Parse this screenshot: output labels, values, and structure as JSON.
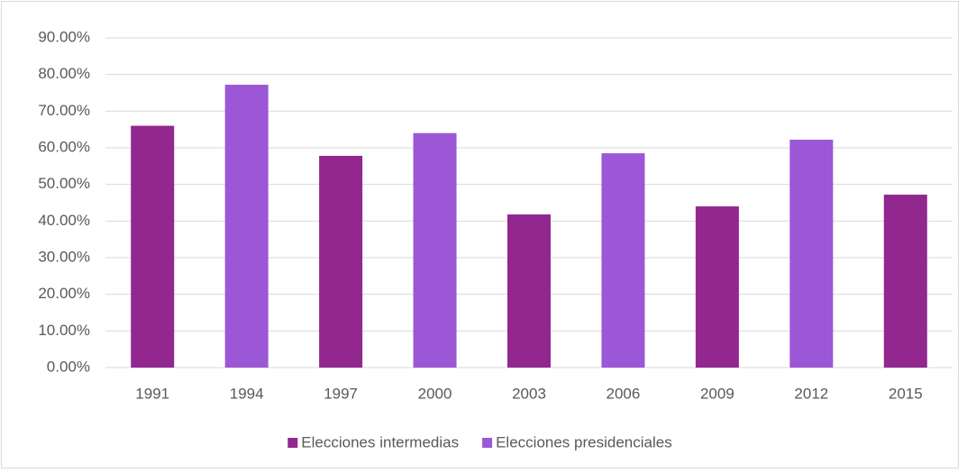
{
  "chart_data": {
    "type": "bar",
    "categories": [
      "1991",
      "1994",
      "1997",
      "2000",
      "2003",
      "2006",
      "2009",
      "2012",
      "2015"
    ],
    "series": [
      {
        "name": "Elecciones intermedias",
        "color": "#92278f",
        "values": [
          66.0,
          null,
          57.8,
          null,
          41.8,
          null,
          44.0,
          null,
          47.2
        ]
      },
      {
        "name": "Elecciones presidenciales",
        "color": "#9b57d6",
        "values": [
          null,
          77.2,
          null,
          64.0,
          null,
          58.5,
          null,
          62.2,
          null
        ]
      }
    ],
    "ylim": [
      0,
      90
    ],
    "yticks": [
      {
        "value": 0,
        "label": "0.00%"
      },
      {
        "value": 10,
        "label": "10.00%"
      },
      {
        "value": 20,
        "label": "20.00%"
      },
      {
        "value": 30,
        "label": "30.00%"
      },
      {
        "value": 40,
        "label": "40.00%"
      },
      {
        "value": 50,
        "label": "50.00%"
      },
      {
        "value": 60,
        "label": "60.00%"
      },
      {
        "value": 70,
        "label": "70.00%"
      },
      {
        "value": 80,
        "label": "80.00%"
      },
      {
        "value": 90,
        "label": "90.00%"
      }
    ],
    "grid": true,
    "legend": "bottom"
  }
}
